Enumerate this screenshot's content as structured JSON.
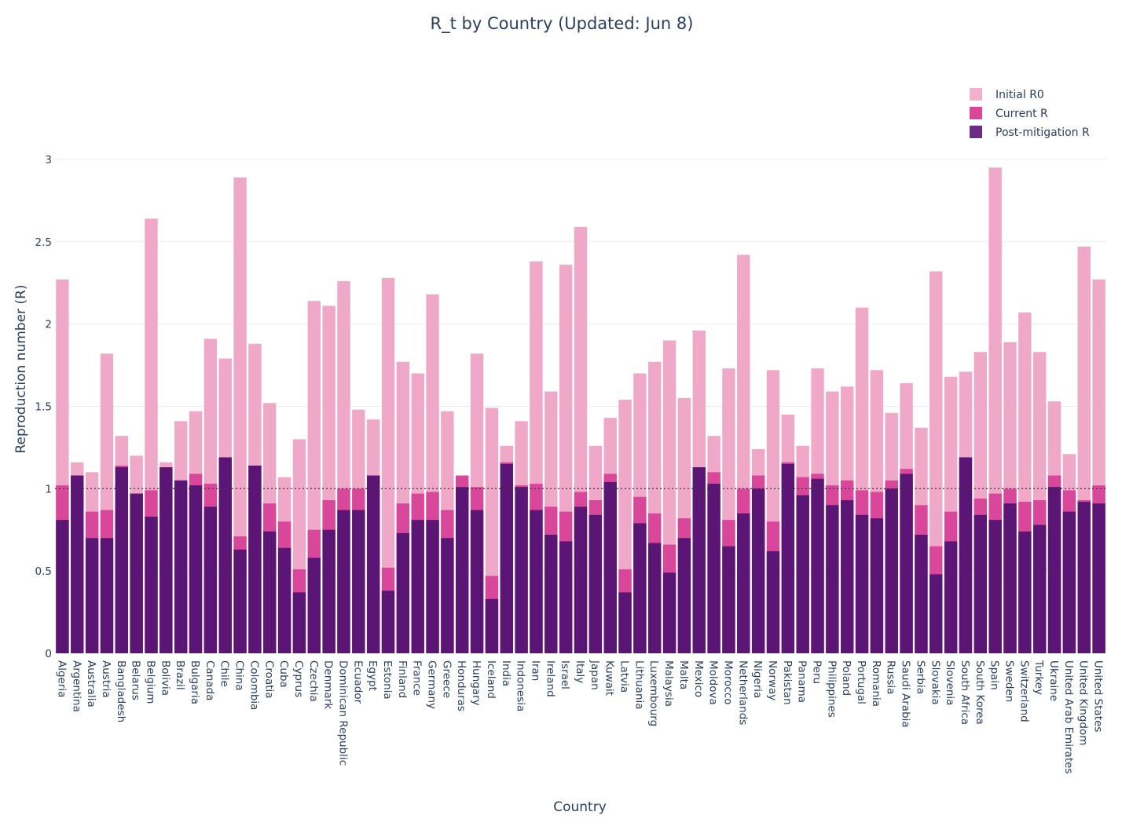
{
  "chart_data": {
    "type": "bar",
    "barmode": "overlay",
    "title": "R_t by Country (Updated: Jun 8)",
    "xlabel": "Country",
    "ylabel": "Reproduction number (R)",
    "ylim": [
      0,
      3.3
    ],
    "yticks": [
      0,
      0.5,
      1,
      1.5,
      2,
      2.5,
      3
    ],
    "ytick_labels": [
      "0",
      "0.5",
      "1",
      "1.5",
      "2",
      "2.5",
      "3"
    ],
    "grid": true,
    "reference_line": {
      "value": 1,
      "style": "dotted"
    },
    "legend_position": "top-right",
    "categories": [
      "Algeria",
      "Argentina",
      "Australia",
      "Austria",
      "Bangladesh",
      "Belarus",
      "Belgium",
      "Bolivia",
      "Brazil",
      "Bulgaria",
      "Canada",
      "Chile",
      "China",
      "Colombia",
      "Croatia",
      "Cuba",
      "Cyprus",
      "Czechia",
      "Denmark",
      "Dominican Republic",
      "Ecuador",
      "Egypt",
      "Estonia",
      "Finland",
      "France",
      "Germany",
      "Greece",
      "Honduras",
      "Hungary",
      "Iceland",
      "India",
      "Indonesia",
      "Iran",
      "Ireland",
      "Israel",
      "Italy",
      "Japan",
      "Kuwait",
      "Latvia",
      "Lithuania",
      "Luxembourg",
      "Malaysia",
      "Malta",
      "Mexico",
      "Moldova",
      "Morocco",
      "Netherlands",
      "Nigeria",
      "Norway",
      "Pakistan",
      "Panama",
      "Peru",
      "Philippines",
      "Poland",
      "Portugal",
      "Romania",
      "Russia",
      "Saudi Arabia",
      "Serbia",
      "Slovakia",
      "Slovenia",
      "South Africa",
      "South Korea",
      "Spain",
      "Sweden",
      "Switzerland",
      "Turkey",
      "Ukraine",
      "United Arab Emirates",
      "United Kingdom",
      "United States"
    ],
    "series": [
      {
        "name": "Initial R0",
        "color": "#f0a8c8",
        "values": [
          2.27,
          1.16,
          1.1,
          1.82,
          1.32,
          1.2,
          2.64,
          1.16,
          1.41,
          1.47,
          1.91,
          1.79,
          2.89,
          1.88,
          1.52,
          1.07,
          1.3,
          2.14,
          2.11,
          2.26,
          1.48,
          1.42,
          2.28,
          1.77,
          1.7,
          2.18,
          1.47,
          1.08,
          1.82,
          1.49,
          1.26,
          1.41,
          2.38,
          1.59,
          2.36,
          2.59,
          1.26,
          1.43,
          1.54,
          1.7,
          1.77,
          1.9,
          1.55,
          1.96,
          1.32,
          1.73,
          2.42,
          1.24,
          1.72,
          1.45,
          1.26,
          1.73,
          1.59,
          1.62,
          2.1,
          1.72,
          1.46,
          1.64,
          1.37,
          2.32,
          1.68,
          1.71,
          1.83,
          2.95,
          1.89,
          2.07,
          1.83,
          1.53,
          1.21,
          2.47,
          2.27
        ]
      },
      {
        "name": "Current R",
        "color": "#d9479a",
        "values": [
          1.02,
          1.08,
          0.86,
          0.87,
          1.14,
          0.97,
          0.99,
          1.13,
          1.05,
          1.09,
          1.03,
          1.19,
          0.71,
          1.14,
          0.91,
          0.8,
          0.51,
          0.75,
          0.93,
          1.0,
          1.0,
          1.08,
          0.52,
          0.91,
          0.97,
          0.98,
          0.87,
          1.08,
          1.01,
          0.47,
          1.16,
          1.02,
          1.03,
          0.89,
          0.86,
          0.98,
          0.93,
          1.09,
          0.51,
          0.95,
          0.85,
          0.66,
          0.82,
          1.13,
          1.1,
          0.81,
          1.0,
          1.08,
          0.8,
          1.16,
          1.07,
          1.09,
          1.02,
          1.05,
          0.99,
          0.98,
          1.05,
          1.12,
          0.9,
          0.65,
          0.86,
          1.19,
          0.94,
          0.97,
          1.0,
          0.92,
          0.93,
          1.08,
          0.99,
          0.93,
          1.02
        ]
      },
      {
        "name": "Post-mitigation R",
        "color": "#5b1675",
        "values": [
          0.81,
          1.08,
          0.7,
          0.7,
          1.13,
          0.97,
          0.83,
          1.13,
          1.05,
          1.02,
          0.89,
          1.19,
          0.63,
          1.14,
          0.74,
          0.64,
          0.37,
          0.58,
          0.75,
          0.87,
          0.87,
          1.08,
          0.38,
          0.73,
          0.81,
          0.81,
          0.7,
          1.01,
          0.87,
          0.33,
          1.15,
          1.01,
          0.87,
          0.72,
          0.68,
          0.89,
          0.84,
          1.04,
          0.37,
          0.79,
          0.67,
          0.49,
          0.7,
          1.13,
          1.03,
          0.65,
          0.85,
          1.0,
          0.62,
          1.15,
          0.96,
          1.06,
          0.9,
          0.93,
          0.84,
          0.82,
          1.0,
          1.09,
          0.72,
          0.48,
          0.68,
          1.19,
          0.84,
          0.81,
          0.91,
          0.74,
          0.78,
          1.01,
          0.86,
          0.92,
          0.91
        ]
      }
    ]
  }
}
